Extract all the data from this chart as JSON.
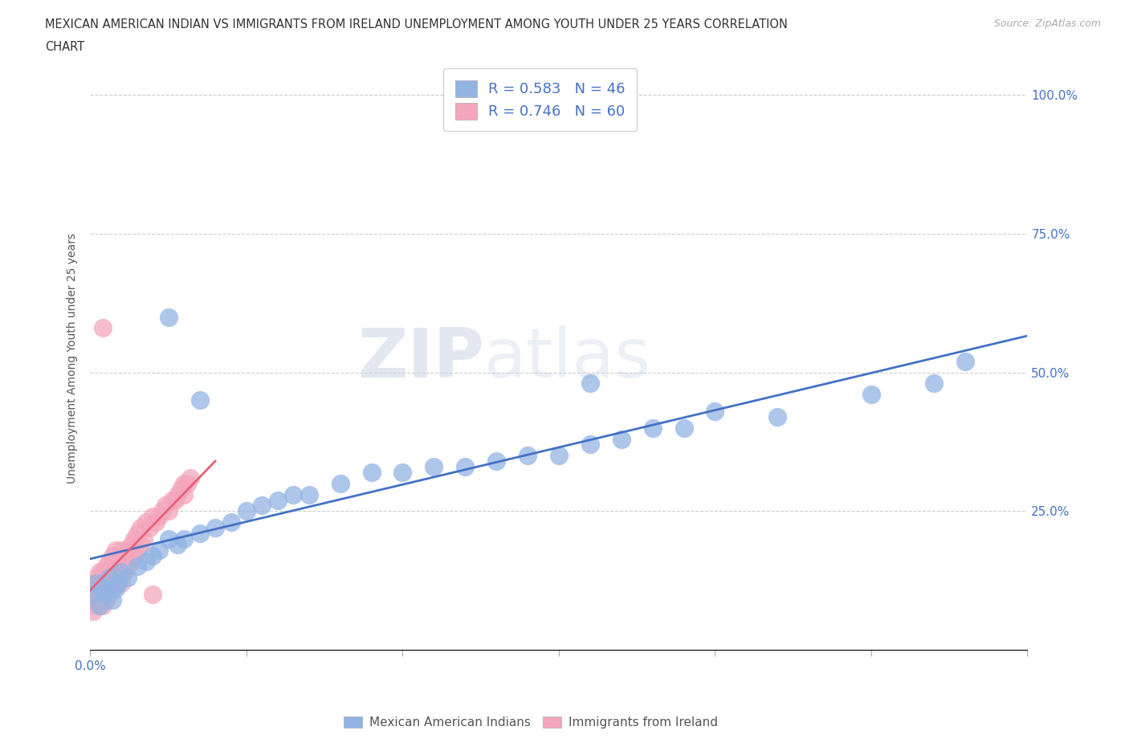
{
  "title_line1": "MEXICAN AMERICAN INDIAN VS IMMIGRANTS FROM IRELAND UNEMPLOYMENT AMONG YOUTH UNDER 25 YEARS CORRELATION",
  "title_line2": "CHART",
  "source": "Source: ZipAtlas.com",
  "ylabel": "Unemployment Among Youth under 25 years",
  "xlim": [
    0.0,
    0.3
  ],
  "ylim": [
    0.0,
    1.05
  ],
  "yticks": [
    0.0,
    0.25,
    0.5,
    0.75,
    1.0
  ],
  "ytick_labels": [
    "",
    "25.0%",
    "50.0%",
    "75.0%",
    "100.0%"
  ],
  "xtick_major": [
    0.0,
    0.05,
    0.1,
    0.15,
    0.2,
    0.25,
    0.3
  ],
  "xtick_label_show": {
    "0.0": "0.0%"
  },
  "legend_labels": [
    "Mexican American Indians",
    "Immigrants from Ireland"
  ],
  "R_blue": 0.583,
  "N_blue": 46,
  "R_pink": 0.746,
  "N_pink": 60,
  "color_blue": "#92b4e3",
  "color_pink": "#f4a7bc",
  "line_blue": "#4472c4",
  "line_pink": "#e8607a",
  "watermark_zip": "ZIP",
  "watermark_atlas": "atlas",
  "blue_scatter_x": [
    0.001,
    0.002,
    0.003,
    0.004,
    0.005,
    0.006,
    0.007,
    0.008,
    0.009,
    0.01,
    0.012,
    0.015,
    0.018,
    0.02,
    0.022,
    0.025,
    0.028,
    0.03,
    0.035,
    0.04,
    0.045,
    0.05,
    0.055,
    0.06,
    0.065,
    0.07,
    0.08,
    0.09,
    0.1,
    0.11,
    0.12,
    0.13,
    0.14,
    0.15,
    0.16,
    0.17,
    0.18,
    0.19,
    0.2,
    0.22,
    0.25,
    0.27,
    0.025,
    0.035,
    0.16,
    0.28
  ],
  "blue_scatter_y": [
    0.1,
    0.12,
    0.08,
    0.11,
    0.1,
    0.13,
    0.09,
    0.11,
    0.12,
    0.14,
    0.13,
    0.15,
    0.16,
    0.17,
    0.18,
    0.2,
    0.19,
    0.2,
    0.21,
    0.22,
    0.23,
    0.25,
    0.26,
    0.27,
    0.28,
    0.28,
    0.3,
    0.32,
    0.32,
    0.33,
    0.33,
    0.34,
    0.35,
    0.35,
    0.37,
    0.38,
    0.4,
    0.4,
    0.43,
    0.42,
    0.46,
    0.48,
    0.6,
    0.45,
    0.48,
    0.52
  ],
  "pink_scatter_x": [
    0.001,
    0.001,
    0.001,
    0.002,
    0.002,
    0.002,
    0.003,
    0.003,
    0.003,
    0.004,
    0.004,
    0.004,
    0.005,
    0.005,
    0.005,
    0.006,
    0.006,
    0.006,
    0.007,
    0.007,
    0.007,
    0.008,
    0.008,
    0.008,
    0.009,
    0.009,
    0.01,
    0.01,
    0.01,
    0.011,
    0.011,
    0.012,
    0.012,
    0.013,
    0.013,
    0.014,
    0.014,
    0.015,
    0.015,
    0.016,
    0.016,
    0.017,
    0.018,
    0.019,
    0.02,
    0.021,
    0.022,
    0.023,
    0.024,
    0.025,
    0.026,
    0.027,
    0.028,
    0.029,
    0.03,
    0.03,
    0.031,
    0.032,
    0.004,
    0.02
  ],
  "pink_scatter_y": [
    0.07,
    0.1,
    0.12,
    0.08,
    0.11,
    0.13,
    0.09,
    0.12,
    0.14,
    0.08,
    0.11,
    0.14,
    0.09,
    0.12,
    0.15,
    0.1,
    0.13,
    0.16,
    0.11,
    0.14,
    0.17,
    0.12,
    0.15,
    0.18,
    0.13,
    0.16,
    0.12,
    0.15,
    0.18,
    0.14,
    0.17,
    0.15,
    0.18,
    0.16,
    0.19,
    0.17,
    0.2,
    0.18,
    0.21,
    0.19,
    0.22,
    0.2,
    0.23,
    0.22,
    0.24,
    0.23,
    0.24,
    0.25,
    0.26,
    0.25,
    0.27,
    0.27,
    0.28,
    0.29,
    0.28,
    0.3,
    0.3,
    0.31,
    0.58,
    0.1
  ]
}
